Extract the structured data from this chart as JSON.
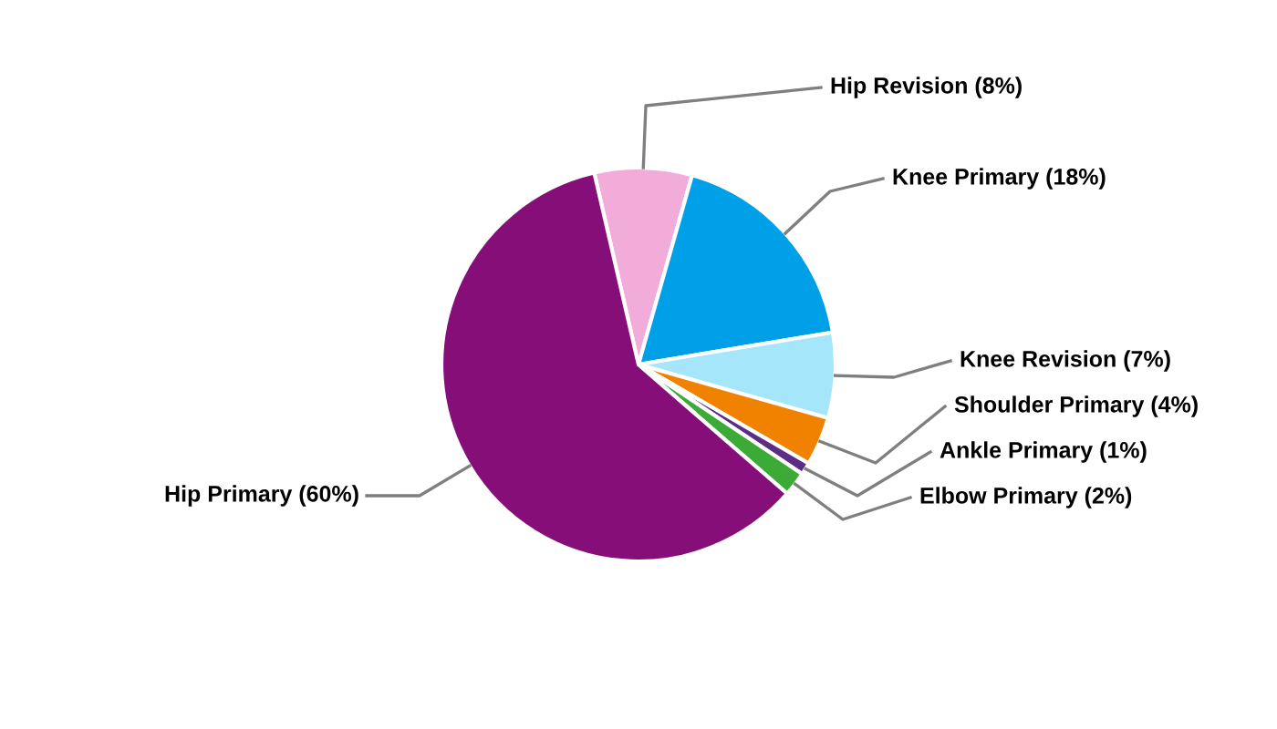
{
  "chart_data": {
    "type": "pie",
    "categories": [
      "Hip Revision (8%)",
      "Knee Primary (18%)",
      "Knee Revision (7%)",
      "Shoulder Primary (4%)",
      "Ankle Primary (1%)",
      "Elbow Primary (2%)",
      "Hip Primary (60%)"
    ],
    "values": [
      8,
      18,
      7,
      4,
      1,
      2,
      60
    ],
    "colors": [
      "#f2acd9",
      "#00a0e9",
      "#a6e6fb",
      "#f08200",
      "#5b2d86",
      "#3cab36",
      "#850e78"
    ],
    "legend": false
  }
}
